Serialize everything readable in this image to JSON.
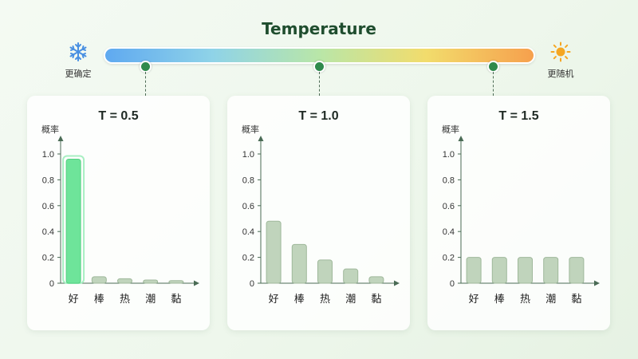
{
  "header": {
    "title": "Temperature",
    "left_label": "更确定",
    "right_label": "更随机",
    "left_icon": "snowflake-icon",
    "right_icon": "sun-icon"
  },
  "colors": {
    "bar_highlight": "#6ee49a",
    "bar_default": "#c0d4bc",
    "bar_default_border": "#9fb89b",
    "axis": "#4a6b55",
    "marker": "#2f8a4c"
  },
  "chart_data": [
    {
      "type": "bar",
      "title": "T = 0.5",
      "ylabel": "概率",
      "categories": [
        "好",
        "棒",
        "热",
        "潮",
        "黏"
      ],
      "values": [
        0.96,
        0.05,
        0.035,
        0.025,
        0.02
      ],
      "yticks": [
        "0",
        "0.2",
        "0.4",
        "0.6",
        "0.8",
        "1.0"
      ],
      "ylim": [
        0,
        1.0
      ],
      "highlight_index": 0
    },
    {
      "type": "bar",
      "title": "T = 1.0",
      "ylabel": "概率",
      "categories": [
        "好",
        "棒",
        "热",
        "潮",
        "黏"
      ],
      "values": [
        0.48,
        0.3,
        0.18,
        0.11,
        0.05
      ],
      "yticks": [
        "0",
        "0.2",
        "0.4",
        "0.6",
        "0.8",
        "1.0"
      ],
      "ylim": [
        0,
        1.0
      ],
      "highlight_index": -1
    },
    {
      "type": "bar",
      "title": "T = 1.5",
      "ylabel": "概率",
      "categories": [
        "好",
        "棒",
        "热",
        "潮",
        "黏"
      ],
      "values": [
        0.2,
        0.2,
        0.2,
        0.2,
        0.2
      ],
      "yticks": [
        "0",
        "0.2",
        "0.4",
        "0.6",
        "0.8",
        "1.0"
      ],
      "ylim": [
        0,
        1.0
      ],
      "highlight_index": -1
    }
  ]
}
